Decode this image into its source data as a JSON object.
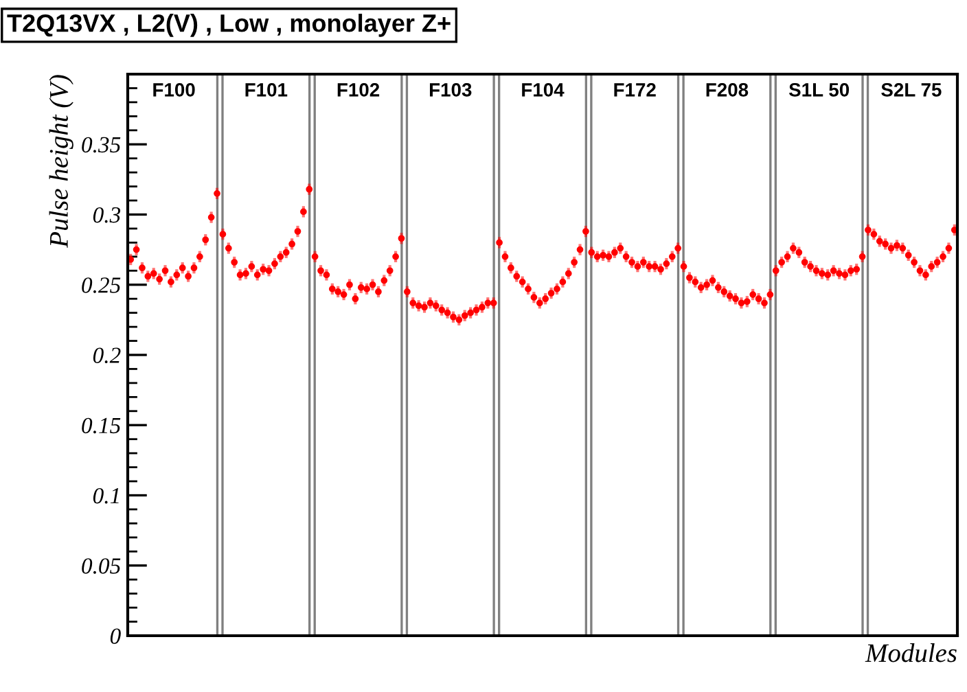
{
  "chart_data": {
    "type": "scatter",
    "title": "T2Q13VX , L2(V) , Low , monolayer Z+",
    "xlabel": "Modules",
    "ylabel": "Pulse height (V)",
    "annotations": [
      "F100",
      "F101",
      "F102",
      "F103",
      "F104",
      "F172",
      "F208",
      "S1L 50",
      "S2L 75"
    ],
    "categories": [
      null,
      null,
      null,
      null,
      null,
      null,
      null,
      null,
      null,
      null,
      null,
      null,
      null,
      null,
      null,
      null,
      null,
      null,
      null,
      null,
      null,
      null,
      null,
      null,
      null,
      null,
      null,
      null,
      null,
      null,
      null,
      null,
      null,
      null,
      null,
      null,
      null,
      null,
      null,
      null,
      null,
      null,
      null,
      null,
      null,
      null,
      null,
      null,
      null,
      null,
      null,
      null,
      null,
      null,
      null,
      null,
      null,
      null,
      null,
      null,
      null,
      null,
      null,
      null,
      null,
      null,
      null,
      null,
      null,
      null,
      null,
      null,
      null,
      null,
      null,
      null,
      null,
      null,
      null,
      null,
      null,
      null,
      null,
      null,
      null,
      null,
      null,
      null,
      null,
      null,
      null,
      null,
      null,
      null,
      null,
      null,
      null,
      null,
      null,
      null,
      null,
      null,
      null,
      null,
      null,
      null,
      null,
      null,
      null,
      null,
      null,
      null,
      null,
      null,
      null,
      null,
      null,
      null,
      null,
      null,
      null,
      null,
      null,
      null,
      null,
      null,
      null,
      null,
      null,
      null,
      null,
      null,
      null,
      null,
      null,
      null,
      null,
      null,
      null,
      null,
      null,
      null,
      null,
      null
    ],
    "series": [
      {
        "color": "#ff0000",
        "values": [
          0.268,
          0.275,
          0.262,
          0.256,
          0.258,
          0.254,
          0.26,
          0.252,
          0.257,
          0.262,
          0.256,
          0.262,
          0.27,
          0.282,
          0.298,
          0.315,
          0.286,
          0.276,
          0.266,
          0.257,
          0.258,
          0.263,
          0.257,
          0.261,
          0.26,
          0.265,
          0.27,
          0.273,
          0.279,
          0.288,
          0.302,
          0.318,
          0.27,
          0.26,
          0.257,
          0.247,
          0.245,
          0.243,
          0.25,
          0.24,
          0.248,
          0.247,
          0.25,
          0.245,
          0.253,
          0.26,
          0.27,
          0.283,
          0.245,
          0.237,
          0.235,
          0.234,
          0.237,
          0.235,
          0.232,
          0.23,
          0.227,
          0.225,
          0.228,
          0.23,
          0.232,
          0.234,
          0.237,
          0.237,
          0.28,
          0.27,
          0.262,
          0.256,
          0.252,
          0.247,
          0.241,
          0.237,
          0.24,
          0.244,
          0.247,
          0.252,
          0.258,
          0.266,
          0.275,
          0.288,
          0.273,
          0.27,
          0.271,
          0.27,
          0.273,
          0.276,
          0.27,
          0.266,
          0.263,
          0.266,
          0.263,
          0.263,
          0.261,
          0.265,
          0.27,
          0.276,
          0.263,
          0.255,
          0.252,
          0.248,
          0.25,
          0.253,
          0.248,
          0.245,
          0.242,
          0.24,
          0.237,
          0.238,
          0.243,
          0.24,
          0.237,
          0.243,
          0.26,
          0.266,
          0.27,
          0.276,
          0.273,
          0.266,
          0.263,
          0.26,
          0.258,
          0.257,
          0.26,
          0.258,
          0.257,
          0.26,
          0.261,
          0.27,
          0.289,
          0.286,
          0.281,
          0.279,
          0.276,
          0.278,
          0.276,
          0.271,
          0.266,
          0.26,
          0.257,
          0.263,
          0.266,
          0.27,
          0.276,
          0.289
        ],
        "errors": [
          0.004,
          0.004,
          0.004,
          0.004,
          0.004,
          0.004,
          0.004,
          0.004,
          0.004,
          0.004,
          0.004,
          0.004,
          0.004,
          0.004,
          0.004,
          0.004,
          0.004,
          0.004,
          0.004,
          0.004,
          0.004,
          0.004,
          0.004,
          0.004,
          0.004,
          0.004,
          0.004,
          0.004,
          0.004,
          0.004,
          0.004,
          0.004,
          0.004,
          0.004,
          0.004,
          0.004,
          0.004,
          0.004,
          0.004,
          0.004,
          0.004,
          0.004,
          0.004,
          0.004,
          0.004,
          0.004,
          0.004,
          0.004,
          0.004,
          0.004,
          0.004,
          0.004,
          0.004,
          0.004,
          0.004,
          0.004,
          0.004,
          0.004,
          0.004,
          0.004,
          0.004,
          0.004,
          0.004,
          0.004,
          0.004,
          0.004,
          0.004,
          0.004,
          0.004,
          0.004,
          0.004,
          0.004,
          0.004,
          0.004,
          0.004,
          0.004,
          0.004,
          0.004,
          0.004,
          0.004,
          0.004,
          0.004,
          0.004,
          0.004,
          0.004,
          0.004,
          0.004,
          0.004,
          0.004,
          0.004,
          0.004,
          0.004,
          0.004,
          0.004,
          0.004,
          0.004,
          0.004,
          0.004,
          0.004,
          0.004,
          0.004,
          0.004,
          0.004,
          0.004,
          0.004,
          0.004,
          0.004,
          0.004,
          0.004,
          0.004,
          0.004,
          0.004,
          0.004,
          0.004,
          0.004,
          0.004,
          0.004,
          0.004,
          0.004,
          0.004,
          0.004,
          0.004,
          0.004,
          0.004,
          0.004,
          0.004,
          0.004,
          0.004,
          0.004,
          0.004,
          0.004,
          0.004,
          0.004,
          0.004,
          0.004,
          0.004,
          0.004,
          0.004,
          0.004,
          0.004,
          0.004,
          0.004,
          0.004,
          0.004
        ]
      }
    ],
    "ylim": [
      0,
      0.4
    ],
    "yticks": [
      0,
      0.05,
      0.1,
      0.15,
      0.2,
      0.25,
      0.3,
      0.35
    ],
    "tick_labels": "y",
    "grid": false,
    "legend": false,
    "marker": "circle"
  }
}
